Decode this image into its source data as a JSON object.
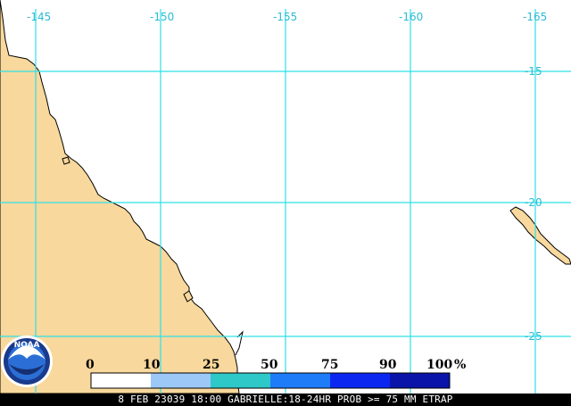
{
  "map": {
    "longitude_labels": [
      "-145",
      "-150",
      "-155",
      "-160",
      "-165"
    ],
    "latitude_labels": [
      "-15",
      "-20",
      "-25"
    ],
    "land_color": "#f8d89c",
    "ocean_color": "#ffffff",
    "grid_color": "#2ee0e8"
  },
  "legend": {
    "values": [
      "0",
      "10",
      "25",
      "50",
      "75",
      "90",
      "100"
    ],
    "unit": "%",
    "bins": [
      {
        "color": "#ffffff"
      },
      {
        "color": "#9cc8f8"
      },
      {
        "color": "#2ec8c8"
      },
      {
        "color": "#1f7cf8"
      },
      {
        "color": "#0c28f0"
      },
      {
        "color": "#0a14a8"
      }
    ]
  },
  "logo": {
    "text": "NOAA"
  },
  "caption": "8 FEB 23039 18:00 GABRIELLE:18-24HR PROB >= 75 MM ETRAP"
}
